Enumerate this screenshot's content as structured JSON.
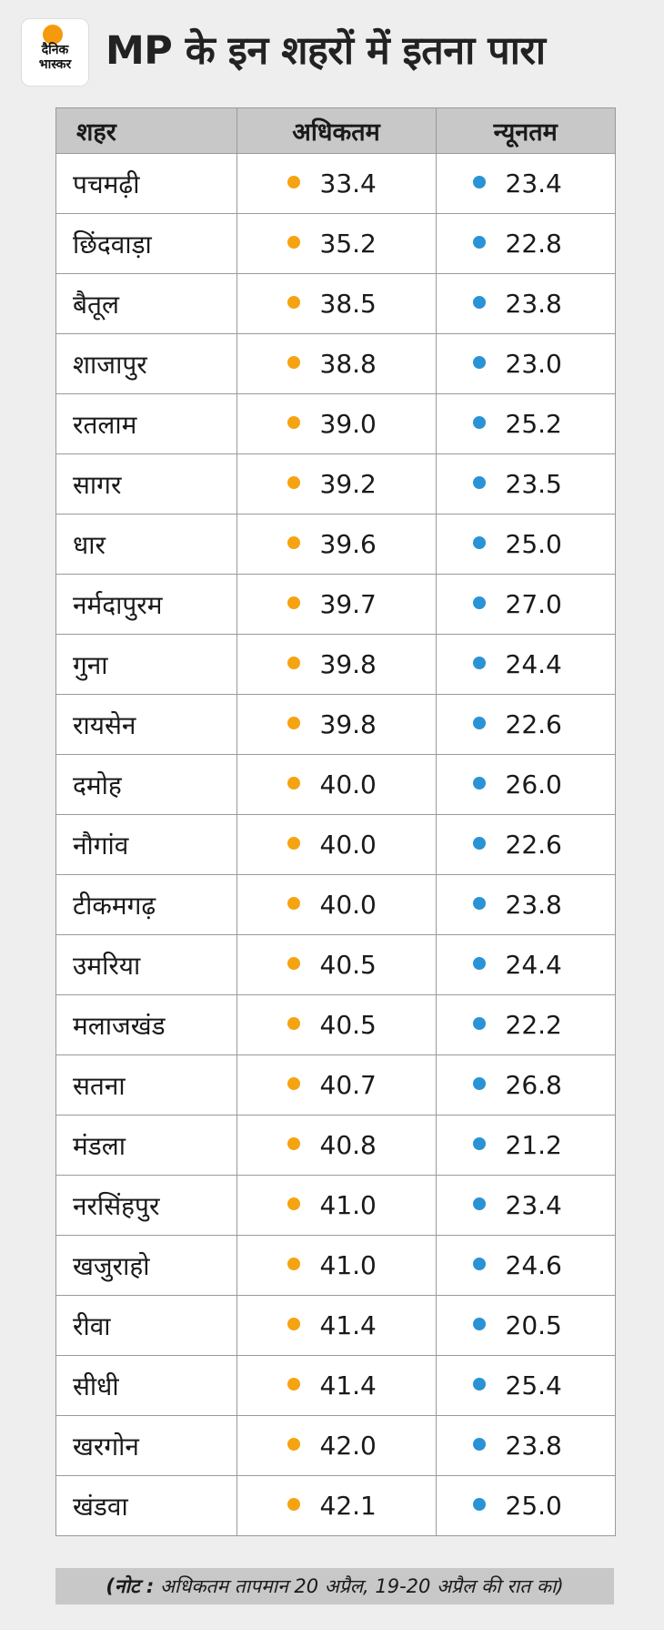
{
  "brand": {
    "line1": "दैनिक",
    "line2": "भास्कर"
  },
  "title": "MP के इन शहरों में इतना पारा",
  "colors": {
    "max_dot": "#f6a312",
    "min_dot": "#2a93d5",
    "header_bg": "#c8c8c8"
  },
  "table": {
    "headers": [
      "शहर",
      "अधिकतम",
      "न्यूनतम"
    ],
    "rows": [
      {
        "city": "पचमढ़ी",
        "max": "33.4",
        "min": "23.4"
      },
      {
        "city": "छिंदवाड़ा",
        "max": "35.2",
        "min": "22.8"
      },
      {
        "city": "बैतूल",
        "max": "38.5",
        "min": "23.8"
      },
      {
        "city": "शाजापुर",
        "max": "38.8",
        "min": "23.0"
      },
      {
        "city": "रतलाम",
        "max": "39.0",
        "min": "25.2"
      },
      {
        "city": "सागर",
        "max": "39.2",
        "min": "23.5"
      },
      {
        "city": "धार",
        "max": "39.6",
        "min": "25.0"
      },
      {
        "city": "नर्मदापुरम",
        "max": "39.7",
        "min": "27.0"
      },
      {
        "city": "गुना",
        "max": "39.8",
        "min": "24.4"
      },
      {
        "city": "रायसेन",
        "max": "39.8",
        "min": "22.6"
      },
      {
        "city": "दमोह",
        "max": "40.0",
        "min": "26.0"
      },
      {
        "city": "नौगांव",
        "max": "40.0",
        "min": "22.6"
      },
      {
        "city": "टीकमगढ़",
        "max": "40.0",
        "min": "23.8"
      },
      {
        "city": "उमरिया",
        "max": "40.5",
        "min": "24.4"
      },
      {
        "city": "मलाजखंड",
        "max": "40.5",
        "min": "22.2"
      },
      {
        "city": "सतना",
        "max": "40.7",
        "min": "26.8"
      },
      {
        "city": "मंडला",
        "max": "40.8",
        "min": "21.2"
      },
      {
        "city": "नरसिंहपुर",
        "max": "41.0",
        "min": "23.4"
      },
      {
        "city": "खजुराहो",
        "max": "41.0",
        "min": "24.6"
      },
      {
        "city": "रीवा",
        "max": "41.4",
        "min": "20.5"
      },
      {
        "city": "सीधी",
        "max": "41.4",
        "min": "25.4"
      },
      {
        "city": "खरगोन",
        "max": "42.0",
        "min": "23.8"
      },
      {
        "city": "खंडवा",
        "max": "42.1",
        "min": "25.0"
      }
    ]
  },
  "note": {
    "label": "(नोट :",
    "text": " अधिकतम तापमान 20 अप्रैल, 19-20 अप्रैल की रात का)"
  }
}
